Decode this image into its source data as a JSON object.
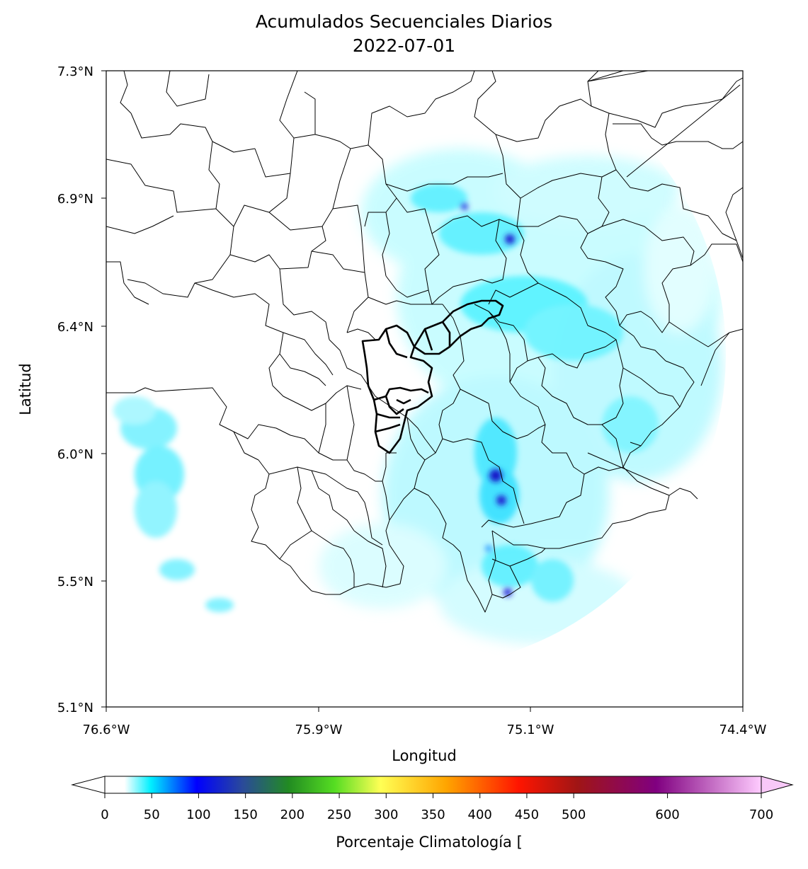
{
  "title": "Acumulados Secuenciales Diarios",
  "subtitle": "2022-07-01",
  "xlabel": "Longitud",
  "ylabel": "Latitud",
  "colorbar_label": "Porcentaje Climatología [",
  "x_ticks": [
    "76.6°W",
    "75.9°W",
    "75.1°W",
    "74.4°W"
  ],
  "y_ticks": [
    "7.3°N",
    "6.9°N",
    "6.4°N",
    "6.0°N",
    "5.5°N",
    "5.1°N"
  ],
  "colorbar": {
    "ticks": [
      0,
      50,
      100,
      150,
      200,
      250,
      300,
      350,
      400,
      450,
      500,
      600,
      700
    ],
    "min": 0,
    "max": 700,
    "extend": "both",
    "colors": [
      "#ffffff",
      "#00f0ff",
      "#0000ff",
      "#2040a0",
      "#228b22",
      "#55dd22",
      "#ffff55",
      "#ffa500",
      "#ff2200",
      "#b01010",
      "#800080",
      "#ffccff"
    ]
  },
  "map": {
    "lon_range": [
      -76.6,
      -74.4
    ],
    "lat_range": [
      5.1,
      7.3
    ],
    "radar_coverage": "circular",
    "shading_color": "#00e5ff",
    "peak_color": "#1010d0"
  }
}
